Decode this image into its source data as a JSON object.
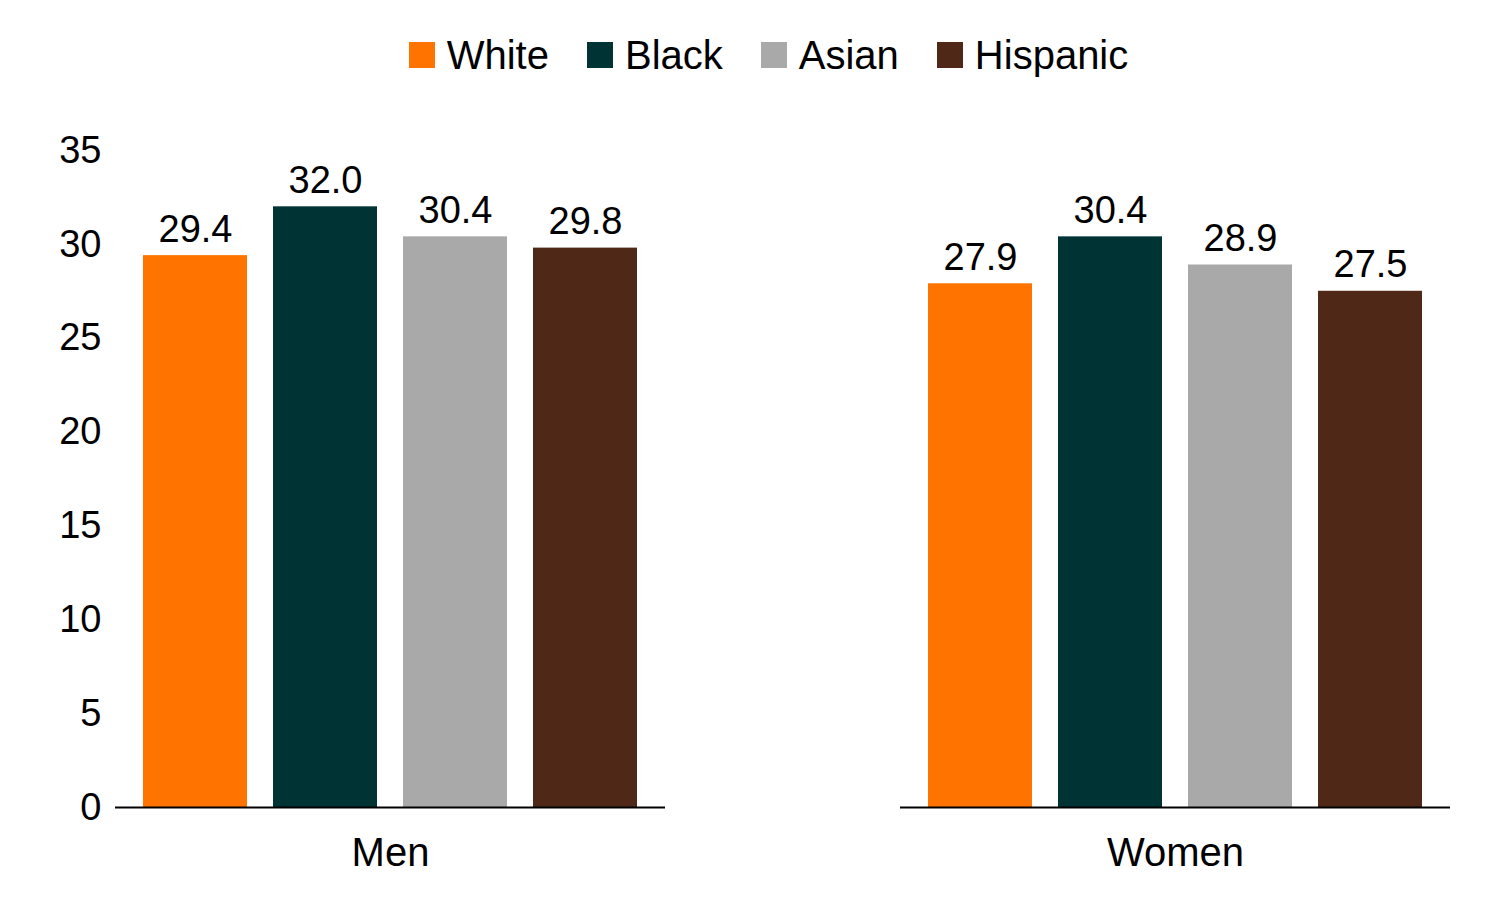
{
  "chart_data": {
    "type": "bar",
    "categories": [
      "Men",
      "Women"
    ],
    "series": [
      {
        "name": "White",
        "color": "#ff7300",
        "values": [
          29.4,
          27.9
        ],
        "value_labels": [
          "29.4",
          "27.9"
        ]
      },
      {
        "name": "Black",
        "color": "#003434",
        "values": [
          32.0,
          30.4
        ],
        "value_labels": [
          "32.0",
          "30.4"
        ]
      },
      {
        "name": "Asian",
        "color": "#a9a9a9",
        "values": [
          30.4,
          28.9
        ],
        "value_labels": [
          "30.4",
          "28.9"
        ]
      },
      {
        "name": "Hispanic",
        "color": "#4f2818",
        "values": [
          29.8,
          27.5
        ],
        "value_labels": [
          "29.8",
          "27.5"
        ]
      }
    ],
    "ylim": [
      0,
      35
    ],
    "yticks": [
      0,
      5,
      10,
      15,
      20,
      25,
      30,
      35
    ],
    "grid": false,
    "legend": "top",
    "data_labels": true
  }
}
